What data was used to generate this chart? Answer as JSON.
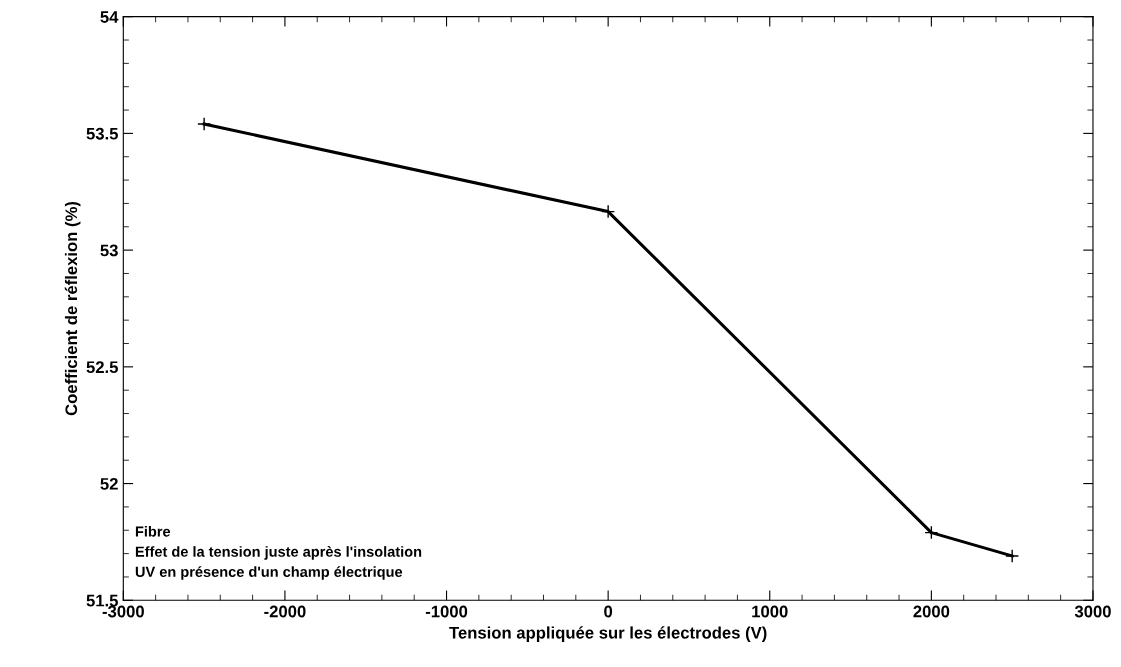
{
  "chart_data": {
    "type": "line",
    "xlabel": "Tension appliquée sur les électrodes (V)",
    "ylabel": "Coefficient de réflexion (%)",
    "x": [
      -2500,
      0,
      2000,
      2500
    ],
    "series": [
      {
        "color": "#000000",
        "values": [
          53.54,
          53.165,
          51.79,
          51.69
        ]
      }
    ],
    "xlim": [
      -3000,
      3000
    ],
    "xticks": [
      -3000,
      -2000,
      -1000,
      0,
      1000,
      2000,
      3000
    ],
    "ylim": [
      51.5,
      54
    ],
    "yticks": [
      51.5,
      52,
      52.5,
      53,
      53.5,
      54
    ],
    "grid": false,
    "marker": "cross",
    "line_style": "solid",
    "annotations": [
      "Fibre\nEffet de la tension juste après l'insolation\nUV en présence d'un champ électrique"
    ]
  }
}
